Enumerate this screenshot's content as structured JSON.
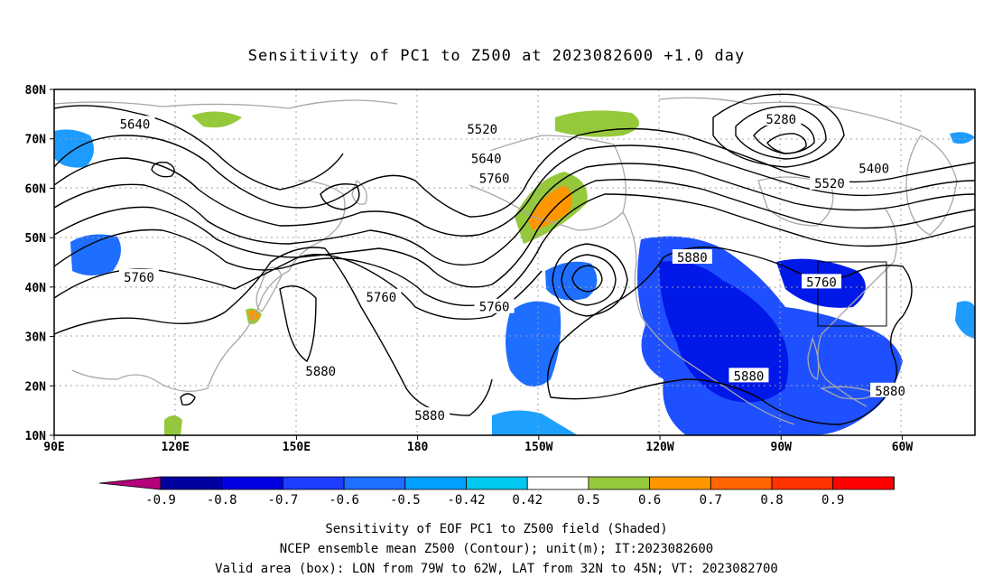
{
  "title": "Sensitivity of PC1 to Z500 at 2023082600 +1.0 day",
  "axes": {
    "lat_labels": [
      "80N",
      "70N",
      "60N",
      "50N",
      "40N",
      "30N",
      "20N",
      "10N"
    ],
    "lon_labels": [
      "90E",
      "120E",
      "150E",
      "180",
      "150W",
      "120W",
      "90W",
      "60W"
    ],
    "lat_values": [
      80,
      70,
      60,
      50,
      40,
      30,
      20,
      10
    ],
    "lon_values": [
      90,
      120,
      150,
      180,
      210,
      240,
      270,
      300
    ],
    "lon_range": [
      90,
      318
    ],
    "lat_range": [
      10,
      80
    ],
    "grid": "dotted"
  },
  "contour_labels": [
    {
      "text": "5640",
      "lon": 110,
      "lat": 73
    },
    {
      "text": "5520",
      "lon": 196,
      "lat": 72
    },
    {
      "text": "5640",
      "lon": 197,
      "lat": 66
    },
    {
      "text": "5760",
      "lon": 199,
      "lat": 62
    },
    {
      "text": "5280",
      "lon": 270,
      "lat": 74
    },
    {
      "text": "5400",
      "lon": 293,
      "lat": 64
    },
    {
      "text": "5520",
      "lon": 282,
      "lat": 61
    },
    {
      "text": "5760",
      "lon": 111,
      "lat": 42
    },
    {
      "text": "5760",
      "lon": 171,
      "lat": 38
    },
    {
      "text": "5760",
      "lon": 199,
      "lat": 36
    },
    {
      "text": "5880",
      "lon": 248,
      "lat": 46
    },
    {
      "text": "5760",
      "lon": 280,
      "lat": 41
    },
    {
      "text": "5880",
      "lon": 156,
      "lat": 23
    },
    {
      "text": "5880",
      "lon": 183,
      "lat": 14
    },
    {
      "text": "5880",
      "lon": 262,
      "lat": 22
    },
    {
      "text": "5880",
      "lon": 297,
      "lat": 19
    }
  ],
  "valid_box": {
    "lon": [
      281,
      298
    ],
    "lat": [
      32,
      45
    ]
  },
  "colorbar": {
    "labels": [
      "-0.9",
      "-0.8",
      "-0.7",
      "-0.6",
      "-0.5",
      "-0.42",
      "0.42",
      "0.5",
      "0.6",
      "0.7",
      "0.8",
      "0.9"
    ],
    "colors": [
      "#b4007a",
      "#00009e",
      "#0000e0",
      "#1e3cff",
      "#1e6eff",
      "#00a0ff",
      "#00c8f0",
      "#ffffff",
      "#96c83c",
      "#ff9600",
      "#ff6400",
      "#ff3200",
      "#ff0000",
      "#ff96c8"
    ]
  },
  "captions": [
    "Sensitivity of EOF PC1 to Z500 field (Shaded)",
    "NCEP ensemble mean Z500 (Contour); unit(m); IT:2023082600",
    "Valid area (box): LON from 79W to 62W, LAT from 32N to 45N; VT: 2023082700"
  ]
}
